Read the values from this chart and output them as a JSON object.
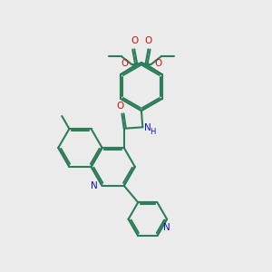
{
  "bg_color": "#ebebeb",
  "bond_color": "#2d7d5a",
  "n_color": "#1111cc",
  "o_color": "#cc1111",
  "bond_lw": 1.5,
  "figsize": [
    3.0,
    3.0
  ],
  "dpi": 100,
  "xlim": [
    0,
    10
  ],
  "ylim": [
    0,
    10
  ]
}
